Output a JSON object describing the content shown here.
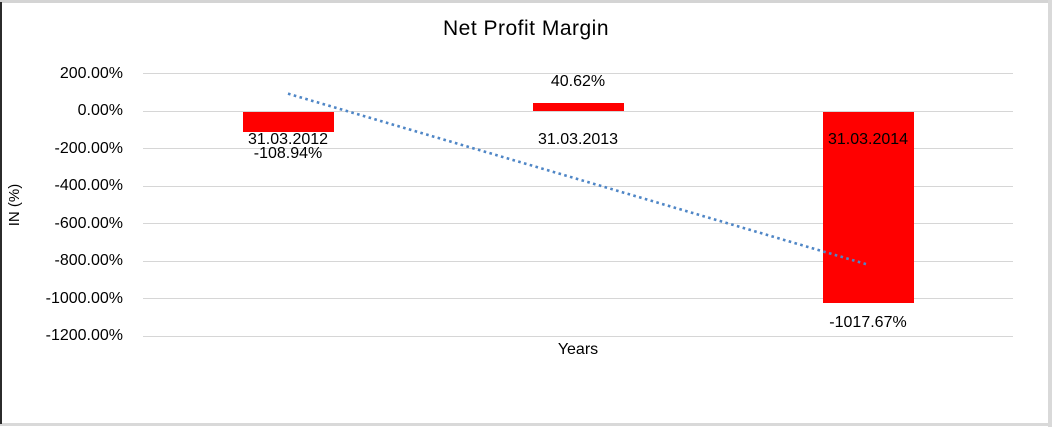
{
  "frame": {
    "background": "#ffffff",
    "border_color": "#d9d9d9",
    "left_edge_color": "#2b2b2b"
  },
  "chart_data": {
    "type": "bar",
    "title": "Net Profit Margin",
    "xlabel": "Years",
    "ylabel": "IN (%)",
    "categories": [
      "31.03.2012",
      "31.03.2013",
      "31.03.2014"
    ],
    "series": [
      {
        "name": "Net Profit Margin",
        "values": [
          -108.94,
          40.62,
          -1017.67
        ],
        "value_labels": [
          "-108.94%",
          "40.62%",
          "-1017.67%"
        ],
        "color": "#ff0000"
      }
    ],
    "ylim": [
      -1200,
      200
    ],
    "yticks": [
      {
        "value": 200,
        "label": "200.00%"
      },
      {
        "value": 0,
        "label": "0.00%"
      },
      {
        "value": -200,
        "label": "-200.00%"
      },
      {
        "value": -400,
        "label": "-400.00%"
      },
      {
        "value": -600,
        "label": "-600.00%"
      },
      {
        "value": -800,
        "label": "-800.00%"
      },
      {
        "value": -1000,
        "label": "-1000.00%"
      },
      {
        "value": -1200,
        "label": "-1200.00%"
      }
    ],
    "grid": true,
    "legend": "none",
    "gridline_color": "#d6d6d6",
    "trendline": {
      "type": "linear",
      "style": "dotted",
      "color": "#4f86c6",
      "start_pct": 92.4,
      "end_pct": -816.4
    }
  }
}
